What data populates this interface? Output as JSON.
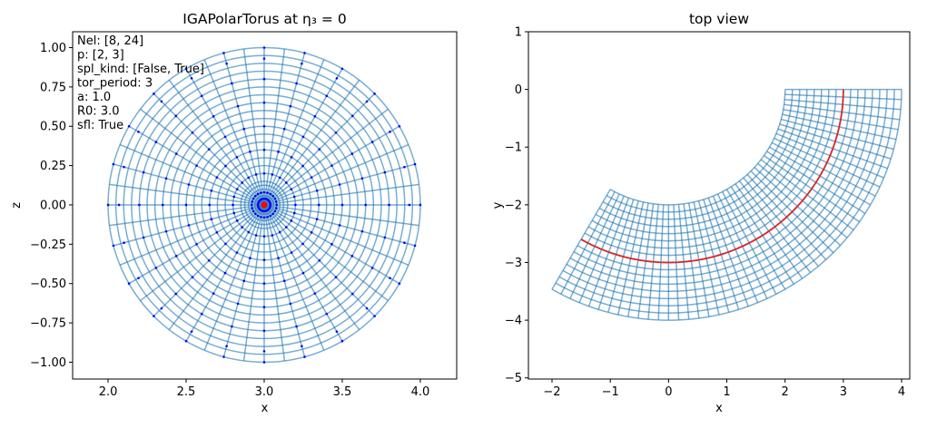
{
  "chart_data": [
    {
      "type": "polar-mesh",
      "title": "IGAPolarTorus at η₃ = 0",
      "xlabel": "x",
      "ylabel": "z",
      "annotations": [
        "Nel: [8, 24]",
        "p: [2, 3]",
        "spl_kind: [False, True]",
        "tor_period: 3",
        "a: 1.0",
        "R0: 3.0",
        "sfl: True"
      ],
      "xlim": [
        1.773,
        4.233
      ],
      "ylim": [
        -1.107,
        1.101
      ],
      "xticks": [
        {
          "value": 2,
          "label": "2.0"
        },
        {
          "value": 2.5,
          "label": "2.5"
        },
        {
          "value": 3,
          "label": "3.0"
        },
        {
          "value": 3.5,
          "label": "3.5"
        },
        {
          "value": 4,
          "label": "4.0"
        }
      ],
      "yticks": [
        {
          "value": -1,
          "label": "−1.00"
        },
        {
          "value": -0.75,
          "label": "−0.75"
        },
        {
          "value": -0.5,
          "label": "−0.50"
        },
        {
          "value": -0.25,
          "label": "−0.25"
        },
        {
          "value": 0,
          "label": "0.00"
        },
        {
          "value": 0.25,
          "label": "0.25"
        },
        {
          "value": 0.5,
          "label": "0.50"
        },
        {
          "value": 0.75,
          "label": "0.75"
        },
        {
          "value": 1,
          "label": "1.00"
        }
      ],
      "center": [
        3.0,
        0.0
      ],
      "mesh_radii": [
        0.02,
        0.04,
        0.06,
        0.08,
        0.1,
        0.125,
        0.15,
        0.2,
        0.25,
        0.3,
        0.35,
        0.4,
        0.45,
        0.5,
        0.55,
        0.6,
        0.65,
        0.7,
        0.75,
        0.8,
        0.85,
        0.9,
        0.95,
        1.0
      ],
      "mesh_angles": [
        0,
        7.5,
        15,
        22.5,
        30,
        37.5,
        45,
        52.5,
        60,
        67.5,
        75,
        82.5,
        90,
        97.5,
        105,
        112.5,
        120,
        127.5,
        135,
        142.5,
        150,
        157.5,
        165,
        172.5,
        180,
        187.5,
        195,
        202.5,
        210,
        217.5,
        225,
        232.5,
        240,
        247.5,
        255,
        262.5,
        270,
        277.5,
        285,
        292.5,
        300,
        307.5,
        315,
        322.5,
        330,
        337.5,
        345,
        352.5
      ],
      "point_radii": [
        0.04,
        0.08,
        0.2,
        0.35,
        0.5,
        0.65,
        0.8,
        0.93,
        1.0
      ],
      "point_angles": [
        0,
        15,
        30,
        45,
        60,
        75,
        90,
        105,
        120,
        135,
        150,
        165,
        180,
        195,
        210,
        225,
        240,
        255,
        270,
        285,
        300,
        315,
        330,
        345
      ],
      "mesh_color": "#1f77b4",
      "point_color": "#0000ff",
      "center_color": "#ff0000"
    },
    {
      "type": "sector-mesh",
      "title": "top view",
      "xlabel": "x",
      "ylabel": "y",
      "xlim": [
        -2.405,
        4.14
      ],
      "ylim": [
        -5.02,
        1
      ],
      "xticks": [
        {
          "value": -2,
          "label": "−2"
        },
        {
          "value": -1,
          "label": "−1"
        },
        0,
        1,
        2,
        3,
        4
      ],
      "yticks": [
        {
          "value": -5,
          "label": "−5"
        },
        {
          "value": -4,
          "label": "−4"
        },
        {
          "value": -3,
          "label": "−3"
        },
        {
          "value": -2,
          "label": "−2"
        },
        {
          "value": -1,
          "label": "−1"
        },
        0,
        1
      ],
      "ring_radii": [
        2,
        2.125,
        2.25,
        2.375,
        2.5,
        2.625,
        2.75,
        2.875,
        3,
        3.125,
        3.25,
        3.375,
        3.5,
        3.625,
        3.75,
        3.875,
        4
      ],
      "spoke_angles": [
        0,
        -2.5,
        -5,
        -7.5,
        -10,
        -12.5,
        -15,
        -17.5,
        -20,
        -22.5,
        -25,
        -27.5,
        -30,
        -32.5,
        -35,
        -37.5,
        -40,
        -42.5,
        -45,
        -47.5,
        -50,
        -52.5,
        -55,
        -57.5,
        -60,
        -62.5,
        -65,
        -67.5,
        -70,
        -72.5,
        -75,
        -77.5,
        -80,
        -82.5,
        -85,
        -87.5,
        -90,
        -92.5,
        -95,
        -97.5,
        -100,
        -102.5,
        -105,
        -107.5,
        -110,
        -112.5,
        -115,
        -117.5,
        -120
      ],
      "highlight_radius": 3,
      "mesh_color": "#1f77b4",
      "highlight_color": "#d62728"
    }
  ]
}
